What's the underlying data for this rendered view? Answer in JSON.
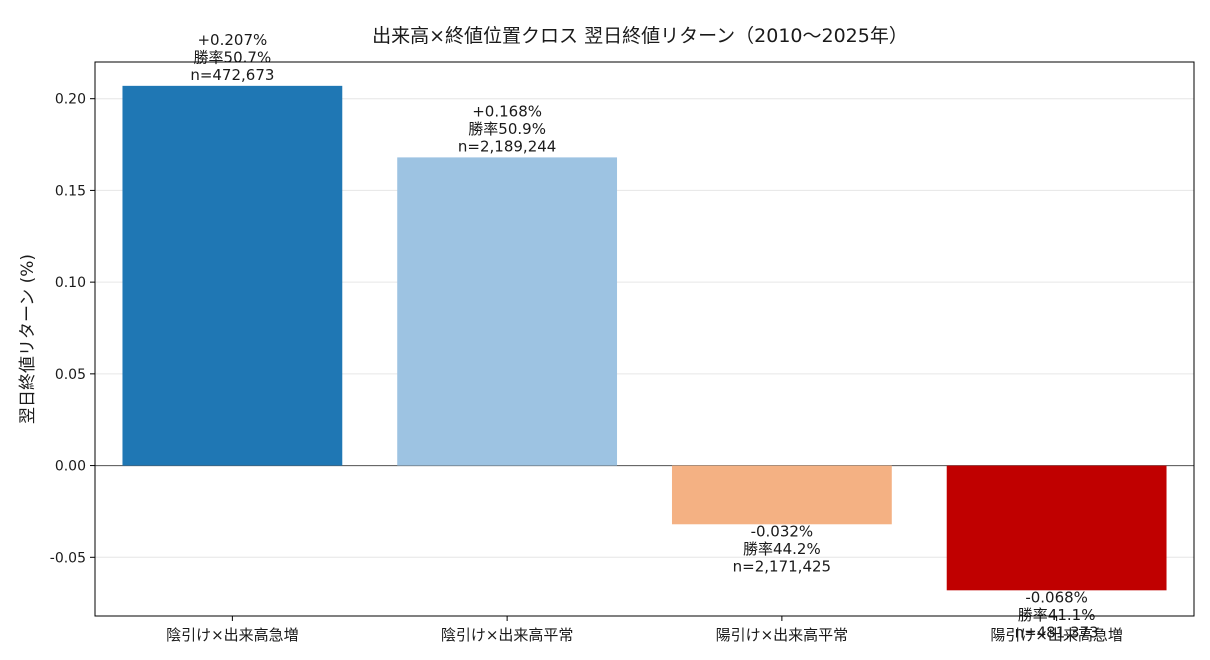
{
  "chart_data": {
    "type": "bar",
    "title": "出来高×終値位置クロス 翌日終値リターン（2010〜2025年）",
    "ylabel": "翌日終値リターン (%)",
    "xlabel": "",
    "ylim": [
      -0.082,
      0.22
    ],
    "yticks": [
      -0.05,
      0.0,
      0.05,
      0.1,
      0.15,
      0.2
    ],
    "ytick_labels": [
      "-0.05",
      "0.00",
      "0.05",
      "0.10",
      "0.15",
      "0.20"
    ],
    "grid": true,
    "categories": [
      "陰引け×出来高急増",
      "陰引け×出来高平常",
      "陽引け×出来高平常",
      "陽引け×出来高急増"
    ],
    "values": [
      0.207,
      0.168,
      -0.032,
      -0.068
    ],
    "colors": [
      "#1f77b4",
      "#9dc3e2",
      "#f4b183",
      "#c00000"
    ],
    "annotations": [
      [
        "+0.207%",
        "勝率50.7%",
        "n=472,673"
      ],
      [
        "+0.168%",
        "勝率50.9%",
        "n=2,189,244"
      ],
      [
        "-0.032%",
        "勝率44.2%",
        "n=2,171,425"
      ],
      [
        "-0.068%",
        "勝率41.1%",
        "n=481,373"
      ]
    ]
  }
}
